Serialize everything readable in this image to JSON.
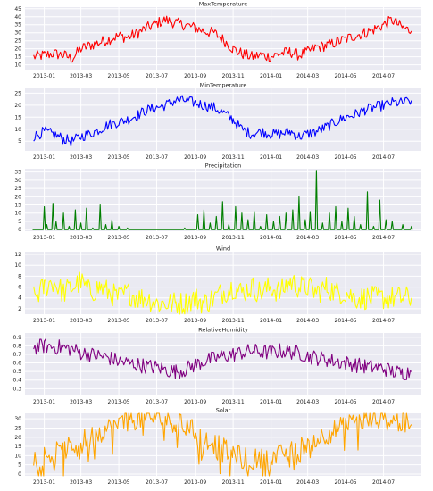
{
  "chart_data": [
    {
      "type": "line",
      "title": "MaxTemperature",
      "color": "#ff0000",
      "x_range": [
        "2012-12-01",
        "2014-08-31"
      ],
      "ylim": [
        7,
        46
      ],
      "yticks": [
        10,
        15,
        20,
        25,
        30,
        35,
        40,
        45
      ],
      "xticks": [
        "2013-01",
        "2013-03",
        "2013-05",
        "2013-07",
        "2013-09",
        "2013-11",
        "2014-01",
        "2014-03",
        "2014-05",
        "2014-07"
      ],
      "grid": true,
      "series": [
        {
          "x": [
            "2012-12-15",
            "2013-01-01",
            "2013-01-15",
            "2013-02-01",
            "2013-02-15",
            "2013-03-01",
            "2013-03-15",
            "2013-04-01",
            "2013-04-15",
            "2013-05-01",
            "2013-05-15",
            "2013-06-01",
            "2013-06-15",
            "2013-07-01",
            "2013-07-15",
            "2013-08-01",
            "2013-08-15",
            "2013-09-01",
            "2013-09-15",
            "2013-10-01",
            "2013-10-15",
            "2013-11-01",
            "2013-11-15",
            "2013-12-01",
            "2013-12-15",
            "2014-01-01",
            "2014-01-15",
            "2014-02-01",
            "2014-02-15",
            "2014-03-01",
            "2014-03-15",
            "2014-04-01",
            "2014-04-15",
            "2014-05-01",
            "2014-05-15",
            "2014-06-01",
            "2014-06-15",
            "2014-07-01",
            "2014-07-15",
            "2014-08-01",
            "2014-08-15"
          ],
          "values": [
            15,
            16,
            17,
            16,
            14,
            20,
            22,
            24,
            26,
            28,
            27,
            30,
            33,
            36,
            38,
            36,
            35,
            33,
            31,
            30,
            26,
            20,
            17,
            15,
            16,
            15,
            17,
            18,
            16,
            18,
            21,
            22,
            24,
            26,
            28,
            30,
            32,
            35,
            38,
            33,
            31
          ],
          "noise": 3.5
        }
      ]
    },
    {
      "type": "line",
      "title": "MinTemperature",
      "color": "#0000ff",
      "x_range": [
        "2012-12-01",
        "2014-08-31"
      ],
      "ylim": [
        1,
        27
      ],
      "yticks": [
        5,
        10,
        15,
        20,
        25
      ],
      "xticks": [
        "2013-01",
        "2013-03",
        "2013-05",
        "2013-07",
        "2013-09",
        "2013-11",
        "2014-01",
        "2014-03",
        "2014-05",
        "2014-07"
      ],
      "grid": true,
      "series": [
        {
          "x": [
            "2012-12-15",
            "2013-01-01",
            "2013-01-15",
            "2013-02-01",
            "2013-02-15",
            "2013-03-01",
            "2013-03-15",
            "2013-04-01",
            "2013-04-15",
            "2013-05-01",
            "2013-05-15",
            "2013-06-01",
            "2013-06-15",
            "2013-07-01",
            "2013-07-15",
            "2013-08-01",
            "2013-08-15",
            "2013-09-01",
            "2013-09-15",
            "2013-10-01",
            "2013-10-15",
            "2013-11-01",
            "2013-11-15",
            "2013-12-01",
            "2013-12-15",
            "2014-01-01",
            "2014-01-15",
            "2014-02-01",
            "2014-02-15",
            "2014-03-01",
            "2014-03-15",
            "2014-04-01",
            "2014-04-15",
            "2014-05-01",
            "2014-05-15",
            "2014-06-01",
            "2014-06-15",
            "2014-07-01",
            "2014-07-15",
            "2014-08-01",
            "2014-08-15"
          ],
          "values": [
            7,
            9,
            8,
            6,
            5,
            7,
            8,
            10,
            12,
            13,
            14,
            16,
            18,
            19,
            20,
            22,
            22,
            21,
            20,
            19,
            17,
            14,
            10,
            8,
            9,
            8,
            8,
            9,
            7,
            8,
            9,
            11,
            13,
            15,
            16,
            18,
            19,
            20,
            21,
            21,
            22
          ],
          "noise": 2.2
        }
      ]
    },
    {
      "type": "line",
      "title": "Precipitation",
      "color": "#007f00",
      "x_range": [
        "2012-12-01",
        "2014-08-31"
      ],
      "ylim": [
        -1,
        37
      ],
      "yticks": [
        0,
        5,
        10,
        15,
        20,
        25,
        30,
        35
      ],
      "xticks": [
        "2013-01",
        "2013-03",
        "2013-05",
        "2013-07",
        "2013-09",
        "2013-11",
        "2014-01",
        "2014-03",
        "2014-05",
        "2014-07"
      ],
      "grid": true,
      "series": [
        {
          "x": [
            "2012-12-15",
            "2013-01-01",
            "2013-01-05",
            "2013-01-15",
            "2013-01-20",
            "2013-02-01",
            "2013-02-10",
            "2013-02-20",
            "2013-03-01",
            "2013-03-10",
            "2013-03-20",
            "2013-04-01",
            "2013-04-10",
            "2013-04-20",
            "2013-05-01",
            "2013-05-15",
            "2013-06-01",
            "2013-06-15",
            "2013-07-01",
            "2013-07-15",
            "2013-08-01",
            "2013-08-15",
            "2013-08-25",
            "2013-09-05",
            "2013-09-15",
            "2013-09-25",
            "2013-10-05",
            "2013-10-15",
            "2013-10-25",
            "2013-11-05",
            "2013-11-15",
            "2013-11-25",
            "2013-12-05",
            "2013-12-15",
            "2013-12-25",
            "2014-01-05",
            "2014-01-15",
            "2014-01-25",
            "2014-02-05",
            "2014-02-15",
            "2014-02-25",
            "2014-03-05",
            "2014-03-15",
            "2014-03-25",
            "2014-04-05",
            "2014-04-15",
            "2014-04-25",
            "2014-05-05",
            "2014-05-15",
            "2014-05-25",
            "2014-06-05",
            "2014-06-15",
            "2014-06-25",
            "2014-07-05",
            "2014-07-15",
            "2014-08-01",
            "2014-08-15"
          ],
          "values": [
            0,
            14,
            3,
            16,
            5,
            10,
            2,
            12,
            4,
            13,
            1,
            15,
            3,
            6,
            2,
            1,
            0,
            0,
            0,
            0,
            0,
            1,
            0,
            9,
            12,
            4,
            8,
            17,
            3,
            14,
            10,
            6,
            11,
            2,
            9,
            5,
            8,
            10,
            12,
            20,
            6,
            11,
            36,
            4,
            10,
            14,
            5,
            13,
            8,
            3,
            23,
            2,
            18,
            6,
            5,
            3,
            2
          ]
        }
      ]
    },
    {
      "type": "line",
      "title": "Wind",
      "color": "#ffff00",
      "x_range": [
        "2012-12-01",
        "2014-08-31"
      ],
      "ylim": [
        1,
        12.5
      ],
      "yticks": [
        2,
        4,
        6,
        8,
        10,
        12
      ],
      "xticks": [
        "2013-01",
        "2013-03",
        "2013-05",
        "2013-07",
        "2013-09",
        "2013-11",
        "2014-01",
        "2014-03",
        "2014-05",
        "2014-07"
      ],
      "grid": true,
      "series": [
        {
          "x": [
            "2012-12-15",
            "2013-01-01",
            "2013-01-15",
            "2013-02-01",
            "2013-02-15",
            "2013-03-01",
            "2013-03-15",
            "2013-04-01",
            "2013-04-15",
            "2013-05-01",
            "2013-05-15",
            "2013-06-01",
            "2013-06-15",
            "2013-07-01",
            "2013-07-15",
            "2013-08-01",
            "2013-08-15",
            "2013-09-01",
            "2013-09-15",
            "2013-10-01",
            "2013-10-15",
            "2013-11-01",
            "2013-11-15",
            "2013-12-01",
            "2013-12-15",
            "2014-01-01",
            "2014-01-15",
            "2014-02-01",
            "2014-02-15",
            "2014-03-01",
            "2014-03-15",
            "2014-04-01",
            "2014-04-15",
            "2014-05-01",
            "2014-05-15",
            "2014-06-01",
            "2014-06-15",
            "2014-07-01",
            "2014-07-15",
            "2014-08-01",
            "2014-08-15"
          ],
          "values": [
            4,
            6,
            7,
            5,
            6,
            7,
            5,
            6,
            5,
            4,
            5,
            4,
            4,
            3,
            3,
            3,
            3,
            4,
            3,
            4,
            5,
            6,
            5,
            6,
            5,
            6,
            5,
            7,
            6,
            6,
            5,
            6,
            5,
            5,
            4,
            4,
            4,
            4,
            4,
            4,
            4
          ],
          "noise": 2.2
        }
      ]
    },
    {
      "type": "line",
      "title": "RelativeHumidity",
      "color": "#800080",
      "x_range": [
        "2012-12-01",
        "2014-08-31"
      ],
      "ylim": [
        0.22,
        0.95
      ],
      "yticks": [
        0.3,
        0.4,
        0.5,
        0.6,
        0.7,
        0.8,
        0.9
      ],
      "xticks": [
        "2013-01",
        "2013-03",
        "2013-05",
        "2013-07",
        "2013-09",
        "2013-11",
        "2014-01",
        "2014-03",
        "2014-05",
        "2014-07"
      ],
      "grid": true,
      "series": [
        {
          "x": [
            "2012-12-15",
            "2013-01-01",
            "2013-01-15",
            "2013-02-01",
            "2013-02-15",
            "2013-03-01",
            "2013-03-15",
            "2013-04-01",
            "2013-04-15",
            "2013-05-01",
            "2013-05-15",
            "2013-06-01",
            "2013-06-15",
            "2013-07-01",
            "2013-07-15",
            "2013-08-01",
            "2013-08-15",
            "2013-09-01",
            "2013-09-15",
            "2013-10-01",
            "2013-10-15",
            "2013-11-01",
            "2013-11-15",
            "2013-12-01",
            "2013-12-15",
            "2014-01-01",
            "2014-01-15",
            "2014-02-01",
            "2014-02-15",
            "2014-03-01",
            "2014-03-15",
            "2014-04-01",
            "2014-04-15",
            "2014-05-01",
            "2014-05-15",
            "2014-06-01",
            "2014-06-15",
            "2014-07-01",
            "2014-07-15",
            "2014-08-01",
            "2014-08-15"
          ],
          "values": [
            0.78,
            0.8,
            0.79,
            0.78,
            0.76,
            0.72,
            0.7,
            0.68,
            0.66,
            0.62,
            0.6,
            0.58,
            0.56,
            0.55,
            0.52,
            0.5,
            0.52,
            0.58,
            0.62,
            0.65,
            0.68,
            0.7,
            0.72,
            0.74,
            0.73,
            0.72,
            0.74,
            0.73,
            0.72,
            0.68,
            0.66,
            0.64,
            0.62,
            0.6,
            0.58,
            0.56,
            0.55,
            0.54,
            0.5,
            0.48,
            0.5
          ],
          "noise": 0.09
        }
      ]
    },
    {
      "type": "line",
      "title": "Solar",
      "color": "#ffa500",
      "x_range": [
        "2012-12-01",
        "2014-08-31"
      ],
      "ylim": [
        -1,
        33
      ],
      "yticks": [
        0,
        5,
        10,
        15,
        20,
        25,
        30
      ],
      "xticks": [
        "2013-01",
        "2013-03",
        "2013-05",
        "2013-07",
        "2013-09",
        "2013-11",
        "2014-01",
        "2014-03",
        "2014-05",
        "2014-07"
      ],
      "grid": true,
      "series": [
        {
          "x": [
            "2012-12-15",
            "2013-01-01",
            "2013-01-15",
            "2013-02-01",
            "2013-02-15",
            "2013-03-01",
            "2013-03-15",
            "2013-04-01",
            "2013-04-15",
            "2013-05-01",
            "2013-05-15",
            "2013-06-01",
            "2013-06-15",
            "2013-07-01",
            "2013-07-15",
            "2013-08-01",
            "2013-08-15",
            "2013-09-01",
            "2013-09-15",
            "2013-10-01",
            "2013-10-15",
            "2013-11-01",
            "2013-11-15",
            "2013-12-01",
            "2013-12-15",
            "2014-01-01",
            "2014-01-15",
            "2014-02-01",
            "2014-02-15",
            "2014-03-01",
            "2014-03-15",
            "2014-04-01",
            "2014-04-15",
            "2014-05-01",
            "2014-05-15",
            "2014-06-01",
            "2014-06-15",
            "2014-07-01",
            "2014-07-15",
            "2014-08-01",
            "2014-08-15"
          ],
          "values": [
            9,
            10,
            11,
            13,
            15,
            18,
            20,
            23,
            25,
            27,
            29,
            30,
            31,
            31,
            30,
            28,
            26,
            23,
            20,
            17,
            14,
            11,
            9,
            8,
            8,
            9,
            10,
            12,
            14,
            17,
            19,
            22,
            24,
            26,
            28,
            29,
            30,
            30,
            29,
            28,
            27
          ],
          "noise": 6
        }
      ]
    }
  ]
}
